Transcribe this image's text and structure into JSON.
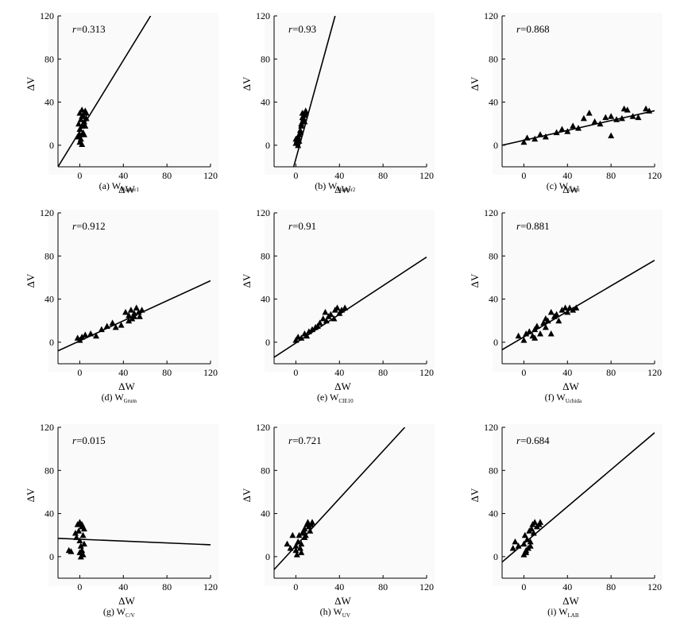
{
  "chart_data": [
    {
      "type": "scatter",
      "caption_prefix": "(a) W",
      "caption_sub": "Hunter1",
      "r_label": "r",
      "r_value": "=0.313",
      "xlabel": "ΔW",
      "ylabel": "ΔV",
      "xticks": [
        0,
        40,
        80,
        120
      ],
      "yticks": [
        0,
        40,
        80,
        120
      ],
      "xlim": [
        -20,
        120
      ],
      "ylim": [
        -20,
        120
      ],
      "line": {
        "x1": -20,
        "y1": -20,
        "x2": 65,
        "y2": 120
      },
      "points": [
        [
          0,
          30
        ],
        [
          2,
          33
        ],
        [
          5,
          32
        ],
        [
          3,
          28
        ],
        [
          1,
          24
        ],
        [
          4,
          22
        ],
        [
          6,
          25
        ],
        [
          2,
          18
        ],
        [
          0,
          15
        ],
        [
          3,
          12
        ],
        [
          -2,
          8
        ],
        [
          1,
          6
        ],
        [
          0,
          3
        ],
        [
          2,
          1
        ],
        [
          4,
          10
        ],
        [
          -1,
          20
        ],
        [
          5,
          18
        ],
        [
          2,
          27
        ],
        [
          6,
          30
        ],
        [
          0,
          10
        ]
      ]
    },
    {
      "type": "scatter",
      "caption_prefix": "(b) W",
      "caption_sub": "Hunter2",
      "r_label": "r",
      "r_value": "=0.93",
      "xlabel": "ΔW",
      "ylabel": "ΔV",
      "xticks": [
        0,
        40,
        80,
        120
      ],
      "yticks": [
        0,
        40,
        80,
        120
      ],
      "xlim": [
        -20,
        120
      ],
      "ylim": [
        -20,
        120
      ],
      "line": {
        "x1": -2,
        "y1": -20,
        "x2": 36,
        "y2": 120
      },
      "points": [
        [
          0,
          2
        ],
        [
          1,
          5
        ],
        [
          2,
          8
        ],
        [
          3,
          10
        ],
        [
          0,
          6
        ],
        [
          4,
          14
        ],
        [
          5,
          18
        ],
        [
          6,
          22
        ],
        [
          7,
          25
        ],
        [
          8,
          28
        ],
        [
          6,
          30
        ],
        [
          9,
          32
        ],
        [
          7,
          24
        ],
        [
          5,
          20
        ],
        [
          8,
          22
        ],
        [
          4,
          12
        ],
        [
          3,
          4
        ],
        [
          2,
          0
        ],
        [
          6,
          26
        ],
        [
          9,
          30
        ]
      ]
    },
    {
      "type": "scatter",
      "caption_prefix": "(c) W",
      "caption_sub": "Ganz",
      "r_label": "r",
      "r_value": "=0.868",
      "xlabel": "ΔW",
      "ylabel": "ΔV",
      "xticks": [
        0,
        40,
        80,
        120
      ],
      "yticks": [
        0,
        40,
        80,
        120
      ],
      "xlim": [
        -20,
        120
      ],
      "ylim": [
        -20,
        120
      ],
      "line": {
        "x1": -20,
        "y1": 0,
        "x2": 120,
        "y2": 32
      },
      "points": [
        [
          0,
          3
        ],
        [
          3,
          7
        ],
        [
          10,
          6
        ],
        [
          15,
          10
        ],
        [
          20,
          8
        ],
        [
          30,
          12
        ],
        [
          35,
          15
        ],
        [
          40,
          13
        ],
        [
          45,
          18
        ],
        [
          50,
          16
        ],
        [
          55,
          25
        ],
        [
          60,
          30
        ],
        [
          65,
          22
        ],
        [
          70,
          20
        ],
        [
          75,
          26
        ],
        [
          80,
          27
        ],
        [
          80,
          9
        ],
        [
          85,
          24
        ],
        [
          90,
          25
        ],
        [
          92,
          34
        ],
        [
          95,
          33
        ],
        [
          100,
          27
        ],
        [
          105,
          26
        ],
        [
          112,
          34
        ],
        [
          115,
          32
        ]
      ]
    },
    {
      "type": "scatter",
      "caption_prefix": "(d) W",
      "caption_sub": "Grum",
      "r_label": "r",
      "r_value": "=0.912",
      "xlabel": "ΔW",
      "ylabel": "ΔV",
      "xticks": [
        0,
        40,
        80,
        120
      ],
      "yticks": [
        0,
        40,
        80,
        120
      ],
      "xlim": [
        -20,
        120
      ],
      "ylim": [
        -20,
        120
      ],
      "line": {
        "x1": -20,
        "y1": -8,
        "x2": 120,
        "y2": 57
      },
      "points": [
        [
          -2,
          4
        ],
        [
          0,
          2
        ],
        [
          2,
          5
        ],
        [
          5,
          7
        ],
        [
          10,
          8
        ],
        [
          15,
          6
        ],
        [
          20,
          12
        ],
        [
          25,
          15
        ],
        [
          30,
          18
        ],
        [
          33,
          14
        ],
        [
          38,
          16
        ],
        [
          42,
          28
        ],
        [
          45,
          25
        ],
        [
          47,
          30
        ],
        [
          48,
          22
        ],
        [
          50,
          27
        ],
        [
          52,
          32
        ],
        [
          54,
          28
        ],
        [
          55,
          24
        ],
        [
          57,
          30
        ],
        [
          45,
          20
        ],
        [
          50,
          24
        ]
      ]
    },
    {
      "type": "scatter",
      "caption_prefix": "(e) W",
      "caption_sub": "CIE10",
      "r_label": "r",
      "r_value": "=0.91",
      "xlabel": "ΔW",
      "ylabel": "ΔV",
      "xticks": [
        0,
        40,
        80,
        120
      ],
      "yticks": [
        0,
        40,
        80,
        120
      ],
      "xlim": [
        -20,
        120
      ],
      "ylim": [
        -20,
        120
      ],
      "line": {
        "x1": -20,
        "y1": -14,
        "x2": 120,
        "y2": 79
      },
      "points": [
        [
          0,
          2
        ],
        [
          2,
          5
        ],
        [
          5,
          4
        ],
        [
          8,
          8
        ],
        [
          10,
          6
        ],
        [
          12,
          10
        ],
        [
          15,
          12
        ],
        [
          18,
          14
        ],
        [
          20,
          15
        ],
        [
          22,
          18
        ],
        [
          25,
          22
        ],
        [
          27,
          28
        ],
        [
          30,
          24
        ],
        [
          32,
          26
        ],
        [
          35,
          22
        ],
        [
          36,
          30
        ],
        [
          38,
          32
        ],
        [
          40,
          27
        ],
        [
          42,
          30
        ],
        [
          45,
          32
        ],
        [
          28,
          20
        ]
      ]
    },
    {
      "type": "scatter",
      "caption_prefix": "(f) W",
      "caption_sub": "Uchida",
      "r_label": "r",
      "r_value": "=0.881",
      "xlabel": "ΔW",
      "ylabel": "ΔV",
      "xticks": [
        0,
        40,
        80,
        120
      ],
      "yticks": [
        0,
        40,
        80,
        120
      ],
      "xlim": [
        -20,
        120
      ],
      "ylim": [
        -20,
        120
      ],
      "line": {
        "x1": -20,
        "y1": -7,
        "x2": 120,
        "y2": 76
      },
      "points": [
        [
          -5,
          6
        ],
        [
          0,
          2
        ],
        [
          2,
          8
        ],
        [
          5,
          10
        ],
        [
          8,
          6
        ],
        [
          10,
          12
        ],
        [
          12,
          15
        ],
        [
          15,
          8
        ],
        [
          18,
          18
        ],
        [
          20,
          22
        ],
        [
          22,
          20
        ],
        [
          25,
          28
        ],
        [
          25,
          8
        ],
        [
          28,
          24
        ],
        [
          30,
          26
        ],
        [
          32,
          20
        ],
        [
          35,
          30
        ],
        [
          38,
          32
        ],
        [
          40,
          28
        ],
        [
          42,
          32
        ],
        [
          45,
          30
        ],
        [
          48,
          32
        ],
        [
          20,
          14
        ],
        [
          10,
          4
        ]
      ]
    },
    {
      "type": "scatter",
      "caption_prefix": "(g) W",
      "caption_sub": "C/V",
      "r_label": "r",
      "r_value": "=0.015",
      "xlabel": "ΔW",
      "ylabel": "ΔV",
      "xticks": [
        0,
        40,
        80,
        120
      ],
      "yticks": [
        0,
        40,
        80,
        120
      ],
      "xlim": [
        -20,
        120
      ],
      "ylim": [
        -20,
        120
      ],
      "line": {
        "x1": -20,
        "y1": 17,
        "x2": 120,
        "y2": 11
      },
      "points": [
        [
          -10,
          6
        ],
        [
          -8,
          5
        ],
        [
          -4,
          22
        ],
        [
          -2,
          30
        ],
        [
          -1,
          24
        ],
        [
          0,
          32
        ],
        [
          2,
          28
        ],
        [
          3,
          20
        ],
        [
          4,
          26
        ],
        [
          0,
          15
        ],
        [
          1,
          10
        ],
        [
          2,
          6
        ],
        [
          3,
          2
        ],
        [
          0,
          4
        ],
        [
          -3,
          18
        ],
        [
          4,
          12
        ],
        [
          1,
          0
        ],
        [
          2,
          30
        ]
      ]
    },
    {
      "type": "scatter",
      "caption_prefix": "(h) W",
      "caption_sub": "UV",
      "r_label": "r",
      "r_value": "=0.721",
      "xlabel": "ΔW",
      "ylabel": "ΔV",
      "xticks": [
        0,
        40,
        80,
        120
      ],
      "yticks": [
        0,
        40,
        80,
        120
      ],
      "xlim": [
        -20,
        120
      ],
      "ylim": [
        -20,
        120
      ],
      "line": {
        "x1": -20,
        "y1": -12,
        "x2": 100,
        "y2": 120
      },
      "points": [
        [
          -8,
          12
        ],
        [
          -5,
          8
        ],
        [
          -3,
          20
        ],
        [
          0,
          6
        ],
        [
          1,
          2
        ],
        [
          2,
          14
        ],
        [
          3,
          20
        ],
        [
          4,
          8
        ],
        [
          5,
          12
        ],
        [
          6,
          22
        ],
        [
          7,
          24
        ],
        [
          8,
          26
        ],
        [
          9,
          20
        ],
        [
          10,
          30
        ],
        [
          11,
          32
        ],
        [
          12,
          28
        ],
        [
          14,
          30
        ],
        [
          15,
          32
        ],
        [
          5,
          4
        ],
        [
          0,
          10
        ],
        [
          8,
          18
        ],
        [
          13,
          24
        ]
      ]
    },
    {
      "type": "scatter",
      "caption_prefix": "(i) W",
      "caption_sub": "LAB",
      "r_label": "r",
      "r_value": "=0.684",
      "xlabel": "ΔW",
      "ylabel": "ΔV",
      "xticks": [
        0,
        40,
        80,
        120
      ],
      "yticks": [
        0,
        40,
        80,
        120
      ],
      "xlim": [
        -20,
        120
      ],
      "ylim": [
        -20,
        120
      ],
      "line": {
        "x1": -20,
        "y1": -5,
        "x2": 120,
        "y2": 115
      },
      "points": [
        [
          -10,
          8
        ],
        [
          -8,
          14
        ],
        [
          -5,
          10
        ],
        [
          0,
          12
        ],
        [
          0,
          2
        ],
        [
          1,
          20
        ],
        [
          2,
          6
        ],
        [
          3,
          16
        ],
        [
          4,
          8
        ],
        [
          5,
          24
        ],
        [
          6,
          10
        ],
        [
          7,
          26
        ],
        [
          8,
          30
        ],
        [
          9,
          22
        ],
        [
          10,
          32
        ],
        [
          12,
          28
        ],
        [
          14,
          30
        ],
        [
          15,
          32
        ],
        [
          2,
          4
        ],
        [
          6,
          14
        ]
      ]
    }
  ]
}
